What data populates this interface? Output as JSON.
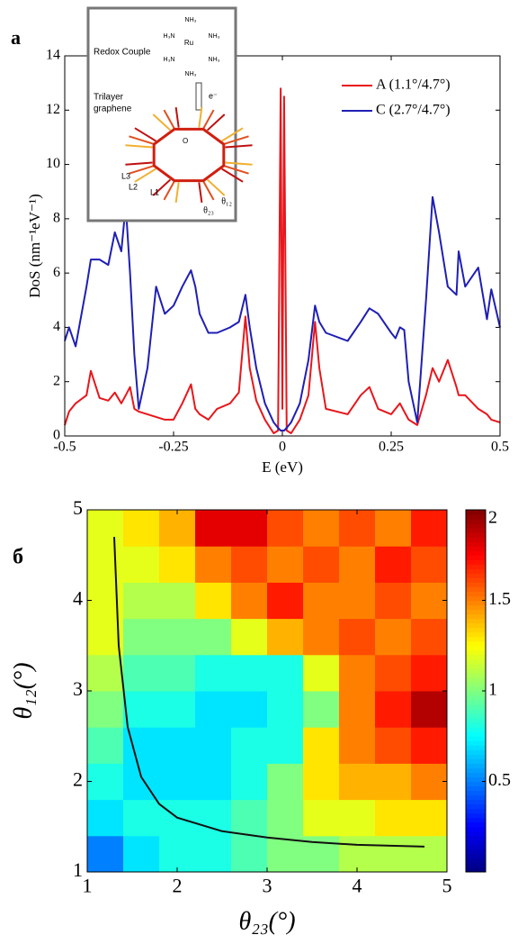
{
  "chart_data": [
    {
      "type": "line",
      "panel_label": "а",
      "xlabel": "E (eV)",
      "ylabel": "DoS (nm⁻¹eV⁻¹)",
      "xlim": [
        -0.5,
        0.5
      ],
      "xticks": [
        -0.5,
        -0.25,
        0,
        0.25,
        0.5
      ],
      "ylim": [
        0,
        14
      ],
      "yticks": [
        0,
        2,
        4,
        6,
        8,
        10,
        12,
        14
      ],
      "legend": "upper right",
      "x": [
        -0.5,
        -0.49,
        -0.475,
        -0.45,
        -0.44,
        -0.42,
        -0.4,
        -0.385,
        -0.37,
        -0.36,
        -0.35,
        -0.34,
        -0.33,
        -0.31,
        -0.29,
        -0.27,
        -0.25,
        -0.23,
        -0.21,
        -0.2,
        -0.19,
        -0.17,
        -0.15,
        -0.12,
        -0.1,
        -0.085,
        -0.075,
        -0.06,
        -0.04,
        -0.02,
        -0.01,
        -0.004,
        0,
        0.004,
        0.01,
        0.02,
        0.04,
        0.06,
        0.075,
        0.085,
        0.1,
        0.15,
        0.18,
        0.2,
        0.22,
        0.25,
        0.26,
        0.27,
        0.28,
        0.29,
        0.31,
        0.33,
        0.345,
        0.36,
        0.38,
        0.4,
        0.405,
        0.42,
        0.45,
        0.47,
        0.48,
        0.5
      ],
      "series": [
        {
          "name": "A (1.1°/4.7°)",
          "color": "#e8161b",
          "values": [
            0.4,
            0.9,
            1.2,
            1.5,
            2.4,
            1.4,
            1.3,
            1.6,
            1.2,
            1.5,
            1.8,
            1.0,
            0.9,
            0.8,
            0.7,
            0.6,
            0.6,
            1.2,
            1.9,
            1.0,
            0.8,
            0.6,
            1.0,
            1.2,
            1.6,
            4.4,
            2.5,
            1.3,
            0.6,
            0.1,
            0.2,
            12.8,
            1.0,
            12.5,
            0.2,
            0.1,
            0.6,
            1.5,
            4.2,
            2.5,
            1.0,
            0.8,
            1.5,
            1.8,
            1.0,
            0.8,
            1.0,
            1.2,
            0.9,
            0.6,
            0.4,
            1.5,
            2.5,
            2.0,
            2.8,
            1.8,
            1.5,
            1.5,
            1.0,
            0.8,
            0.6,
            0.5
          ]
        },
        {
          "name": "C (2.7°/4.7°)",
          "color": "#1f1fb4",
          "values": [
            3.5,
            4.0,
            3.3,
            5.5,
            6.5,
            6.5,
            6.3,
            7.5,
            6.8,
            8.5,
            6.0,
            3.0,
            1.0,
            2.5,
            5.5,
            4.5,
            4.8,
            5.5,
            6.1,
            5.5,
            4.5,
            3.8,
            3.8,
            4.0,
            4.2,
            5.2,
            4.0,
            2.5,
            1.2,
            0.5,
            0.3,
            0.2,
            0.2,
            0.2,
            0.3,
            0.5,
            1.2,
            2.8,
            4.8,
            4.2,
            3.8,
            3.5,
            4.2,
            4.7,
            4.5,
            3.8,
            3.6,
            4.0,
            3.9,
            2.0,
            0.5,
            5.0,
            8.8,
            7.5,
            5.5,
            5.2,
            6.8,
            5.5,
            6.2,
            4.3,
            5.4,
            4.0
          ]
        }
      ],
      "inset": {
        "title": "Redox Couple",
        "metal": "Ru",
        "ligands": [
          "NH₃",
          "H₃N",
          "NH₃",
          "H₃N",
          "NH₃",
          "NH₃"
        ],
        "electron": "e⁻",
        "graphene": [
          "Trilayer",
          "graphene"
        ],
        "layers": [
          "L3",
          "L2",
          "L1"
        ],
        "origin": "O",
        "angles": [
          "θ₁₂",
          "θ₂₃"
        ]
      }
    },
    {
      "type": "heatmap",
      "panel_label": "б",
      "xlabel": "θ₂₃(°)",
      "ylabel": "θ₁₂(°)",
      "xlim": [
        1,
        5
      ],
      "xticks": [
        1,
        2,
        3,
        4,
        5
      ],
      "ylim": [
        1,
        5
      ],
      "yticks": [
        1,
        2,
        3,
        4,
        5
      ],
      "x": [
        1.2,
        1.6,
        2.0,
        2.4,
        2.8,
        3.2,
        3.6,
        4.0,
        4.4,
        4.8
      ],
      "y": [
        1.2,
        1.6,
        2.0,
        2.4,
        2.8,
        3.2,
        3.6,
        4.0,
        4.4,
        4.8
      ],
      "values": [
        [
          0.5,
          0.7,
          0.8,
          0.8,
          0.9,
          1.0,
          1.0,
          1.1,
          1.1,
          1.1
        ],
        [
          0.7,
          0.8,
          0.8,
          0.8,
          0.9,
          1.0,
          1.2,
          1.2,
          1.3,
          1.3
        ],
        [
          0.8,
          0.7,
          0.7,
          0.7,
          0.8,
          1.0,
          1.3,
          1.4,
          1.4,
          1.5
        ],
        [
          0.9,
          0.7,
          0.7,
          0.7,
          0.8,
          0.8,
          1.3,
          1.5,
          1.6,
          1.7
        ],
        [
          1.0,
          0.8,
          0.8,
          0.7,
          0.7,
          0.8,
          1.0,
          1.5,
          1.7,
          1.9
        ],
        [
          1.1,
          0.9,
          0.9,
          0.8,
          0.8,
          0.8,
          1.2,
          1.5,
          1.6,
          1.7
        ],
        [
          1.2,
          1.0,
          1.0,
          1.0,
          1.2,
          1.4,
          1.5,
          1.6,
          1.5,
          1.6
        ],
        [
          1.2,
          1.1,
          1.1,
          1.3,
          1.5,
          1.7,
          1.5,
          1.5,
          1.6,
          1.5
        ],
        [
          1.2,
          1.2,
          1.3,
          1.5,
          1.6,
          1.5,
          1.6,
          1.5,
          1.7,
          1.6
        ],
        [
          1.2,
          1.3,
          1.4,
          1.8,
          1.8,
          1.6,
          1.5,
          1.6,
          1.5,
          1.7
        ]
      ],
      "clim": [
        0,
        2
      ],
      "colorbar_ticks": [
        0.5,
        1,
        1.5,
        2
      ],
      "colormap": "jet",
      "curve": {
        "color": "#111111",
        "x": [
          1.3,
          1.35,
          1.45,
          1.6,
          1.8,
          2.0,
          2.5,
          3.0,
          3.5,
          4.0,
          4.75
        ],
        "y": [
          4.7,
          3.5,
          2.6,
          2.05,
          1.75,
          1.6,
          1.45,
          1.38,
          1.33,
          1.3,
          1.28
        ]
      }
    }
  ]
}
